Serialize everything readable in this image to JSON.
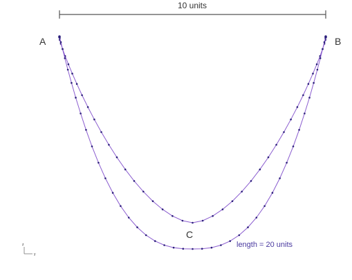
{
  "diagram": {
    "scale_label": "10 units",
    "point_a": "A",
    "point_b": "B",
    "point_c": "C",
    "length_label": "length = 20 units",
    "axis_z": "z",
    "axis_y": "y",
    "colors": {
      "curve": "#8a5ccf",
      "node": "#2b1f7a",
      "length_label": "#4a3aa0",
      "scale_bar": "#555555"
    }
  }
}
